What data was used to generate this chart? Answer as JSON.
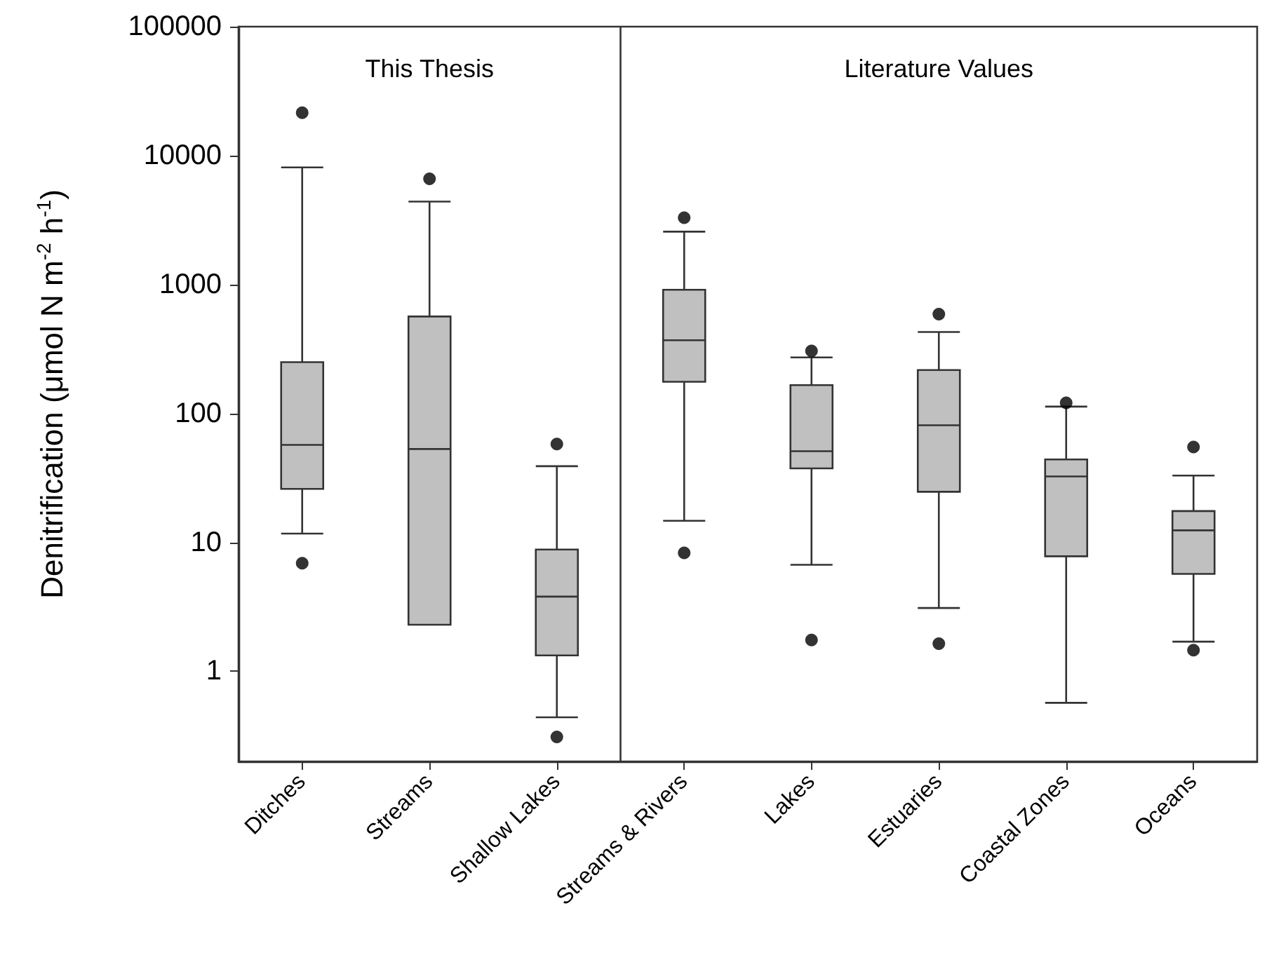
{
  "chart_data": {
    "type": "box",
    "ylabel": "Denitrification (μmol N m$^{-2}$ h$^{-1}$)",
    "categories": [
      "Ditches",
      "Streams",
      "Shallow Lakes",
      "Streams & Rivers",
      "Lakes",
      "Estuaries",
      "Coastal Zones",
      "Oceans"
    ],
    "boxes": [
      {
        "low": 11.7,
        "q1": 26,
        "median": 57,
        "q3": 250,
        "high": 8100,
        "outliers": [
          21500,
          6.9
        ]
      },
      {
        "low": 2.3,
        "q1": 2.3,
        "median": 53,
        "q3": 565,
        "high": 4400,
        "outliers": [
          6600
        ]
      },
      {
        "low": 0.44,
        "q1": 1.33,
        "median": 3.8,
        "q3": 8.8,
        "high": 39,
        "outliers": [
          58,
          0.31
        ]
      },
      {
        "low": 14.7,
        "q1": 176,
        "median": 370,
        "q3": 910,
        "high": 2570,
        "outliers": [
          3300,
          8.3
        ]
      },
      {
        "low": 6.7,
        "q1": 37.5,
        "median": 51,
        "q3": 166,
        "high": 272,
        "outliers": [
          305,
          1.75
        ]
      },
      {
        "low": 3.1,
        "q1": 24.7,
        "median": 81,
        "q3": 217,
        "high": 428,
        "outliers": [
          590,
          1.64
        ]
      },
      {
        "low": 0.57,
        "q1": 7.8,
        "median": 32.5,
        "q3": 44,
        "high": 113,
        "outliers": [
          121
        ]
      },
      {
        "low": 1.7,
        "q1": 5.7,
        "median": 12.4,
        "q3": 17.5,
        "high": 33,
        "outliers": [
          55,
          1.46
        ]
      }
    ],
    "color": "#c0c0c0",
    "log": true,
    "ylim": [
      0.2,
      100000
    ],
    "yticks": [
      1,
      10,
      100,
      1000,
      10000,
      100000
    ],
    "annotations": [
      "This Thesis",
      "Literature Values"
    ]
  }
}
